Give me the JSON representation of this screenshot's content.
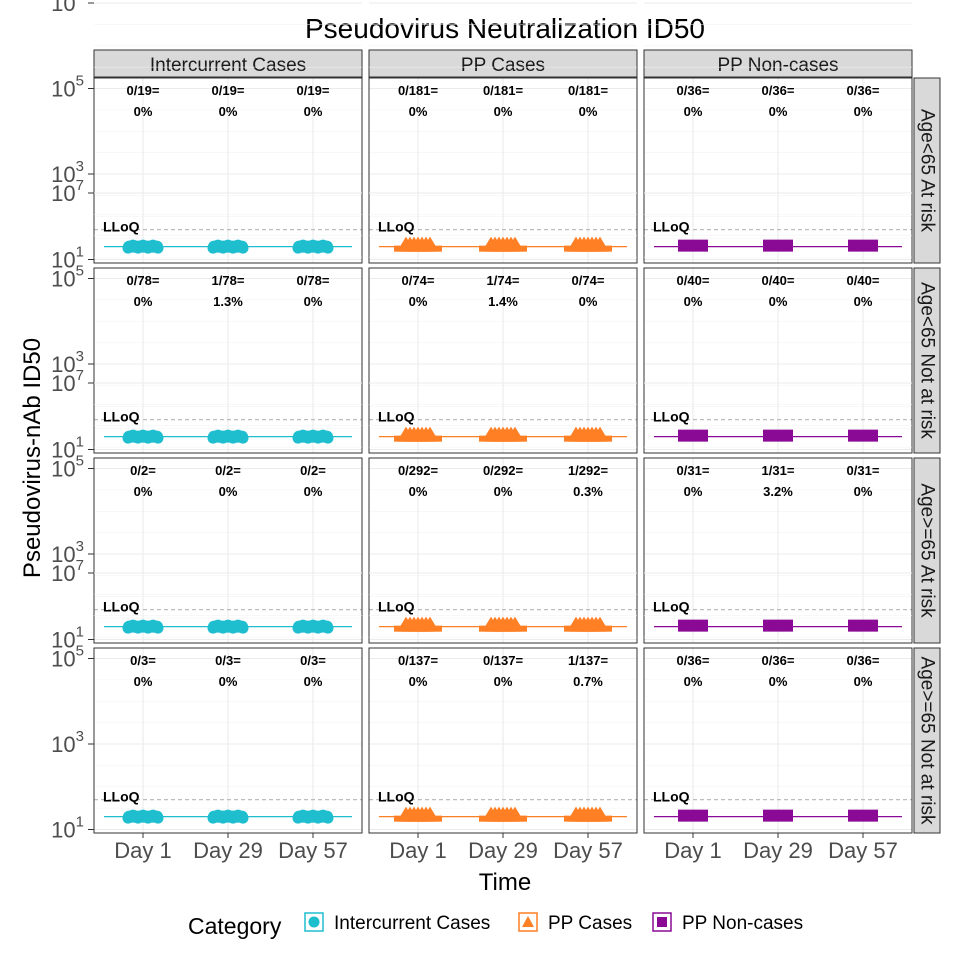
{
  "chart_data": {
    "type": "box",
    "title": "Pseudovirus Neutralization ID50",
    "xlabel": "Time",
    "ylabel": "Pseudovirus-nAb ID50",
    "y_scale": "log10",
    "y_ticks": [
      {
        "base": "10",
        "exp": "1"
      },
      {
        "base": "10",
        "exp": "3"
      },
      {
        "base": "10",
        "exp": "5"
      },
      {
        "base": "10",
        "exp": "7"
      }
    ],
    "x_categories": [
      "Day 1",
      "Day 29",
      "Day 57"
    ],
    "lloq_label": "LLoQ",
    "lloq_value": 50,
    "legend": {
      "title": "Category",
      "items": [
        {
          "label": "Intercurrent Cases",
          "color": "#1ebecf",
          "shape": "circle"
        },
        {
          "label": "PP Cases",
          "color": "#ff7f24",
          "shape": "triangle"
        },
        {
          "label": "PP Non-cases",
          "color": "#8b0a95",
          "shape": "square"
        }
      ]
    },
    "columns": [
      "Intercurrent Cases",
      "PP Cases",
      "PP Non-cases"
    ],
    "rows": [
      "Age<65 At risk",
      "Age<65 Not at risk",
      "Age>=65 At risk",
      "Age>=65 Not at risk"
    ],
    "response_rates": [
      [
        [
          [
            "0/19=",
            "0%"
          ],
          [
            "0/19=",
            "0%"
          ],
          [
            "0/19=",
            "0%"
          ]
        ],
        [
          [
            "0/181=",
            "0%"
          ],
          [
            "0/181=",
            "0%"
          ],
          [
            "0/181=",
            "0%"
          ]
        ],
        [
          [
            "0/36=",
            "0%"
          ],
          [
            "0/36=",
            "0%"
          ],
          [
            "0/36=",
            "0%"
          ]
        ]
      ],
      [
        [
          [
            "0/78=",
            "0%"
          ],
          [
            "1/78=",
            "1.3%"
          ],
          [
            "0/78=",
            "0%"
          ]
        ],
        [
          [
            "0/74=",
            "0%"
          ],
          [
            "1/74=",
            "1.4%"
          ],
          [
            "0/74=",
            "0%"
          ]
        ],
        [
          [
            "0/40=",
            "0%"
          ],
          [
            "0/40=",
            "0%"
          ],
          [
            "0/40=",
            "0%"
          ]
        ]
      ],
      [
        [
          [
            "0/2=",
            "0%"
          ],
          [
            "0/2=",
            "0%"
          ],
          [
            "0/2=",
            "0%"
          ]
        ],
        [
          [
            "0/292=",
            "0%"
          ],
          [
            "0/292=",
            "0%"
          ],
          [
            "1/292=",
            "0.3%"
          ]
        ],
        [
          [
            "0/31=",
            "0%"
          ],
          [
            "1/31=",
            "3.2%"
          ],
          [
            "0/31=",
            "0%"
          ]
        ]
      ],
      [
        [
          [
            "0/3=",
            "0%"
          ],
          [
            "0/3=",
            "0%"
          ],
          [
            "0/3=",
            "0%"
          ]
        ],
        [
          [
            "0/137=",
            "0%"
          ],
          [
            "0/137=",
            "0%"
          ],
          [
            "1/137=",
            "0.7%"
          ]
        ],
        [
          [
            "0/36=",
            "0%"
          ],
          [
            "0/36=",
            "0%"
          ],
          [
            "0/36=",
            "0%"
          ]
        ]
      ]
    ],
    "box_median_value": 20
  }
}
